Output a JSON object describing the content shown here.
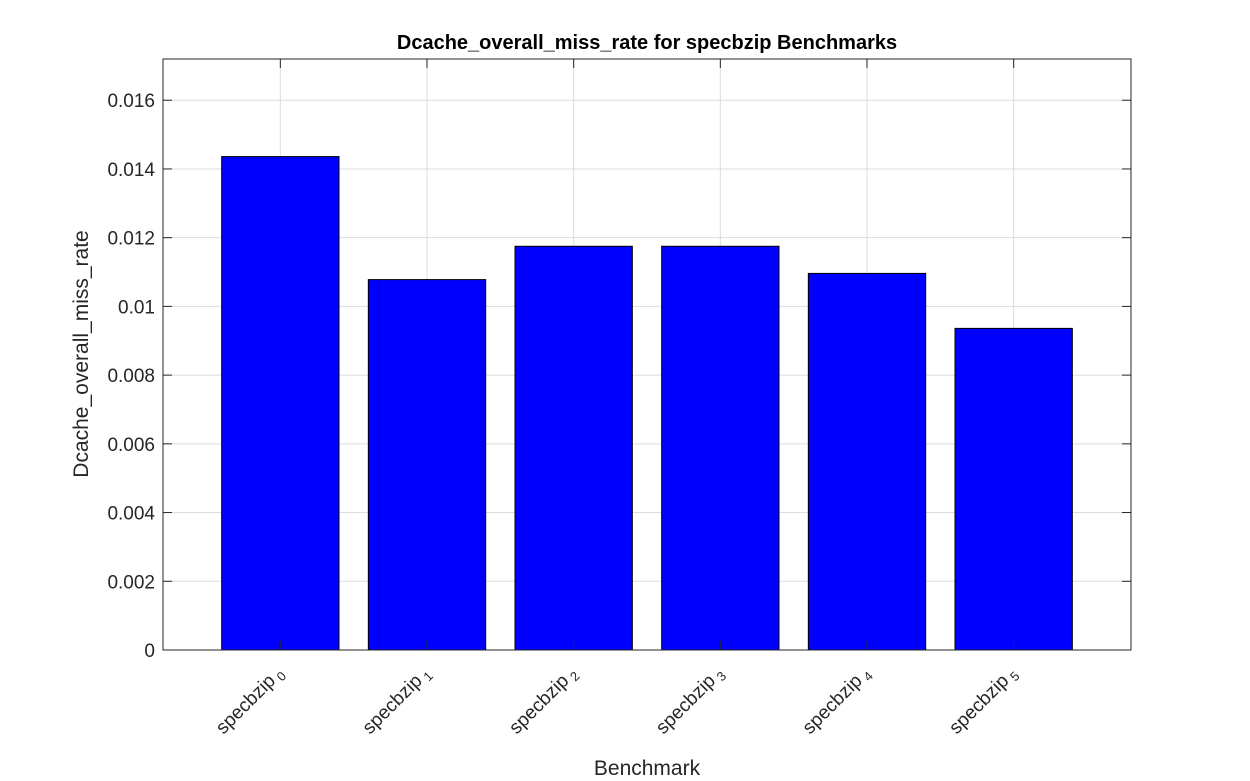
{
  "chart_data": {
    "type": "bar",
    "title": "Dcache_overall_miss_rate for specbzip Benchmarks",
    "xlabel": "Benchmark",
    "ylabel": "Dcache_overall_miss_rate",
    "categories": [
      {
        "base": "specbzip",
        "sub": "0"
      },
      {
        "base": "specbzip",
        "sub": "1"
      },
      {
        "base": "specbzip",
        "sub": "2"
      },
      {
        "base": "specbzip",
        "sub": "3"
      },
      {
        "base": "specbzip",
        "sub": "4"
      },
      {
        "base": "specbzip",
        "sub": "5"
      }
    ],
    "values": [
      0.01436,
      0.01078,
      0.01175,
      0.01175,
      0.01096,
      0.00936
    ],
    "ylim": [
      0,
      0.0172
    ],
    "yticks": [
      0,
      0.002,
      0.004,
      0.006,
      0.008,
      0.01,
      0.012,
      0.014,
      0.016
    ],
    "ytick_labels": [
      "0",
      "0.002",
      "0.004",
      "0.006",
      "0.008",
      "0.01",
      "0.012",
      "0.014",
      "0.016"
    ],
    "grid": true,
    "bar_color": "#0000FF"
  }
}
